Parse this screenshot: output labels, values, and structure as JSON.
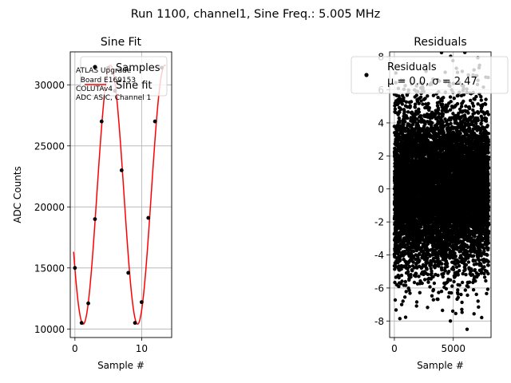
{
  "figure": {
    "suptitle": "Run 1100, channel1, Sine Freq.: 5.005 MHz"
  },
  "chart_data": [
    {
      "type": "scatter",
      "title": "Sine Fit",
      "xlabel": "Sample #",
      "ylabel": "ADC Counts",
      "xlim": [
        -0.7,
        14.5
      ],
      "ylim": [
        9300,
        32700
      ],
      "xticks": [
        0,
        10
      ],
      "yticks": [
        10000,
        15000,
        20000,
        25000,
        30000
      ],
      "ytick_labels": [
        "10000",
        "15000",
        "20000",
        "25000",
        "30000"
      ],
      "grid": true,
      "legend_position": "top-right",
      "annotation": [
        "ATLAS Upgrade",
        "  Board E169153",
        "COLUTAv4",
        "ADC ASIC, Channel 1"
      ],
      "series": [
        {
          "name": "Samples",
          "marker": "point",
          "color": "#000000",
          "x": [
            0,
            1,
            2,
            3,
            4,
            5,
            6,
            7,
            8,
            9,
            10,
            11,
            12,
            13
          ],
          "y": [
            15000,
            10500,
            12100,
            19000,
            27000,
            31400,
            29500,
            23000,
            14600,
            10500,
            12200,
            19100,
            27000,
            31400
          ]
        },
        {
          "name": "Sine fit",
          "line": true,
          "color": "#ff0000",
          "fit": {
            "offset": 21000,
            "amplitude": 10600,
            "period": 8.15,
            "phase_deg": -145
          }
        }
      ]
    },
    {
      "type": "scatter",
      "title": "Residuals",
      "xlabel": "Sample #",
      "ylim": [
        -9,
        8.3
      ],
      "xlim": [
        -400,
        8200
      ],
      "xticks": [
        0,
        5000
      ],
      "yticks": [
        -8,
        -6,
        -4,
        -2,
        0,
        2,
        4,
        6,
        8
      ],
      "grid": true,
      "legend_position": "top-right",
      "series": [
        {
          "name": "Residuals",
          "label_line2": "μ = 0.0, σ = 2.47",
          "color": "#000000",
          "n_points": 8000,
          "mean": 0.0,
          "std": 2.47
        }
      ]
    }
  ]
}
